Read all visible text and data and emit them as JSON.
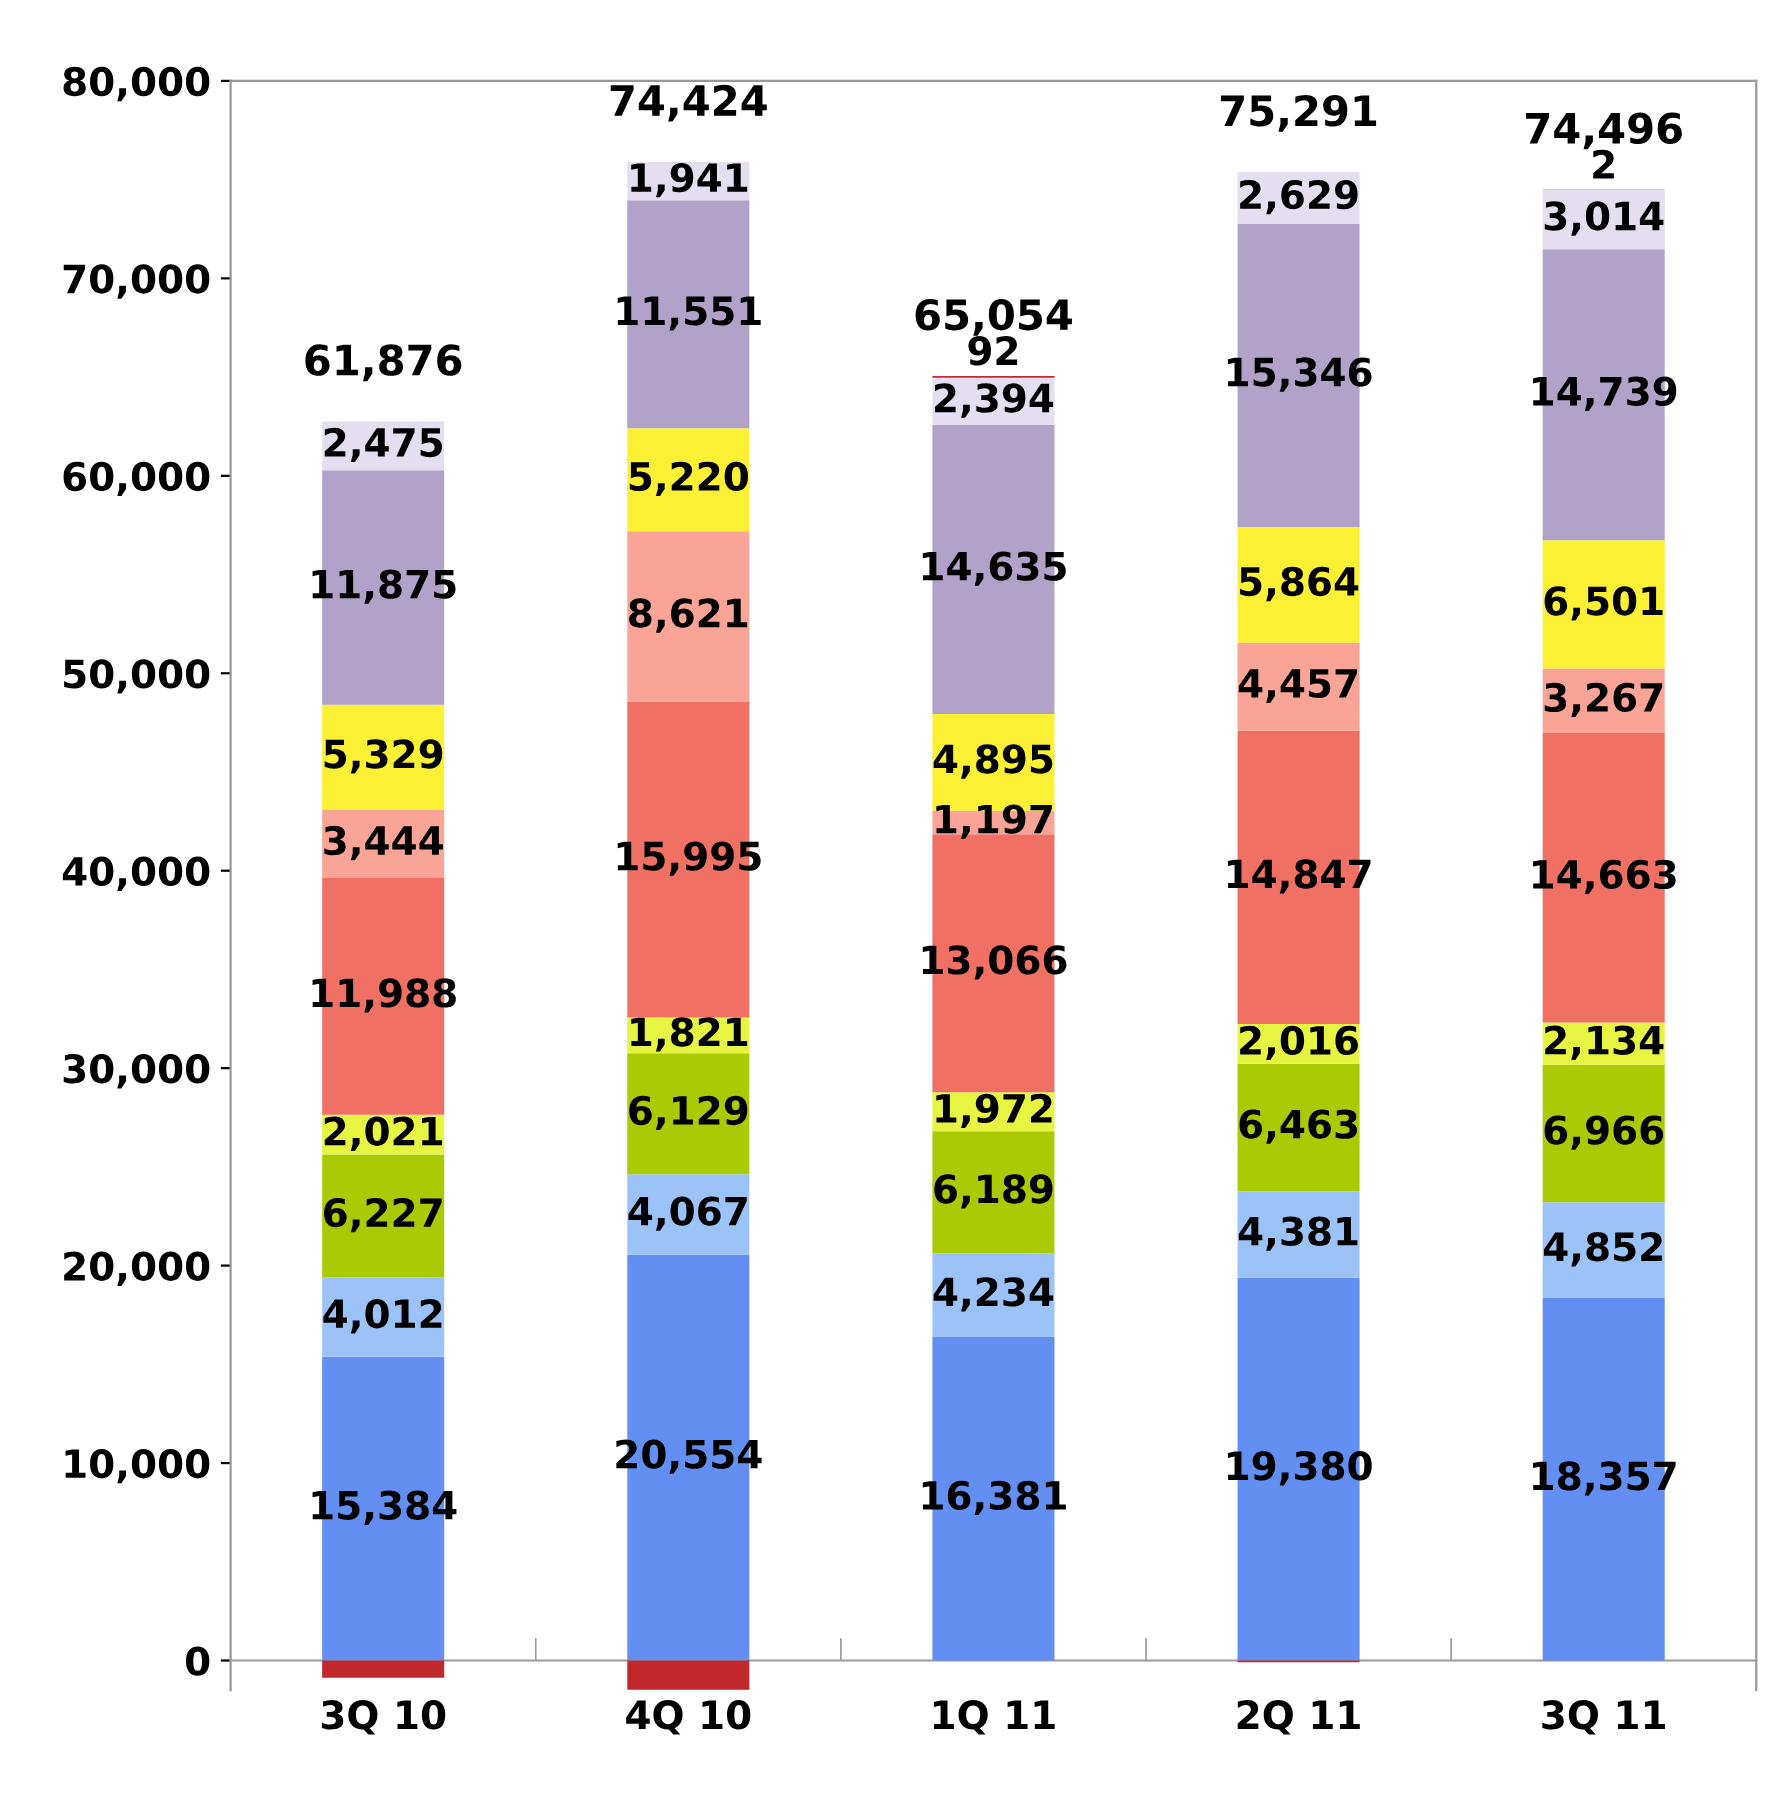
{
  "chart_data": {
    "type": "bar",
    "stacked": true,
    "categories": [
      "3Q 10",
      "4Q 10",
      "1Q 11",
      "2Q 11",
      "3Q 11"
    ],
    "series": [
      {
        "color": "#638ef2",
        "values": [
          15384,
          20554,
          16381,
          19380,
          18357
        ],
        "value_labels": [
          "15,384",
          "20,554",
          "16,381",
          "19,380",
          "18,357"
        ]
      },
      {
        "color": "#9cc3f8",
        "values": [
          4012,
          4067,
          4234,
          4381,
          4852
        ],
        "value_labels": [
          "4,012",
          "4,067",
          "4,234",
          "4,381",
          "4,852"
        ]
      },
      {
        "color": "#aacb04",
        "values": [
          6227,
          6129,
          6189,
          6463,
          6966
        ],
        "value_labels": [
          "6,227",
          "6,129",
          "6,189",
          "6,463",
          "6,966"
        ]
      },
      {
        "color": "#e6f542",
        "values": [
          2021,
          1821,
          1972,
          2016,
          2134
        ],
        "value_labels": [
          "2,021",
          "1,821",
          "1,972",
          "2,016",
          "2,134"
        ]
      },
      {
        "color": "#f07163",
        "values": [
          11988,
          15995,
          13066,
          14847,
          14663
        ],
        "value_labels": [
          "11,988",
          "15,995",
          "13,066",
          "14,847",
          "14,663"
        ]
      },
      {
        "color": "#f9a497",
        "values": [
          3444,
          8621,
          1197,
          4457,
          3267
        ],
        "value_labels": [
          "3,444",
          "8,621",
          "1,197",
          "4,457",
          "3,267"
        ]
      },
      {
        "color": "#fbf034",
        "values": [
          5329,
          5220,
          4895,
          5864,
          6501
        ],
        "value_labels": [
          "5,329",
          "5,220",
          "4,895",
          "5,864",
          "6,501"
        ]
      },
      {
        "color": "#b1a2c9",
        "values": [
          11875,
          11551,
          14635,
          15346,
          14739
        ],
        "value_labels": [
          "11,875",
          "11,551",
          "14,635",
          "15,346",
          "14,739"
        ]
      },
      {
        "color": "#e5def0",
        "values": [
          2475,
          1941,
          2394,
          2629,
          3014
        ],
        "value_labels": [
          "2,475",
          "1,941",
          "2,394",
          "2,629",
          "3,014"
        ]
      },
      {
        "color": "#c0282c",
        "values": [
          -879,
          -1475,
          92,
          -92,
          2
        ],
        "value_labels": [
          null,
          null,
          "92",
          null,
          "2"
        ]
      }
    ],
    "totals": [
      "61,876",
      "74,424",
      "65,054",
      "75,291",
      "74,496"
    ],
    "ylim": [
      -1500,
      80000
    ],
    "yticks": [
      {
        "value": 0,
        "label": "0"
      },
      {
        "value": 10000,
        "label": "10,000"
      },
      {
        "value": 20000,
        "label": "20,000"
      },
      {
        "value": 30000,
        "label": "30,000"
      },
      {
        "value": 40000,
        "label": "40,000"
      },
      {
        "value": 50000,
        "label": "50,000"
      },
      {
        "value": 60000,
        "label": "60,000"
      },
      {
        "value": 70000,
        "label": "70,000"
      },
      {
        "value": 80000,
        "label": "80,000"
      }
    ],
    "grid": false,
    "legend": false
  }
}
